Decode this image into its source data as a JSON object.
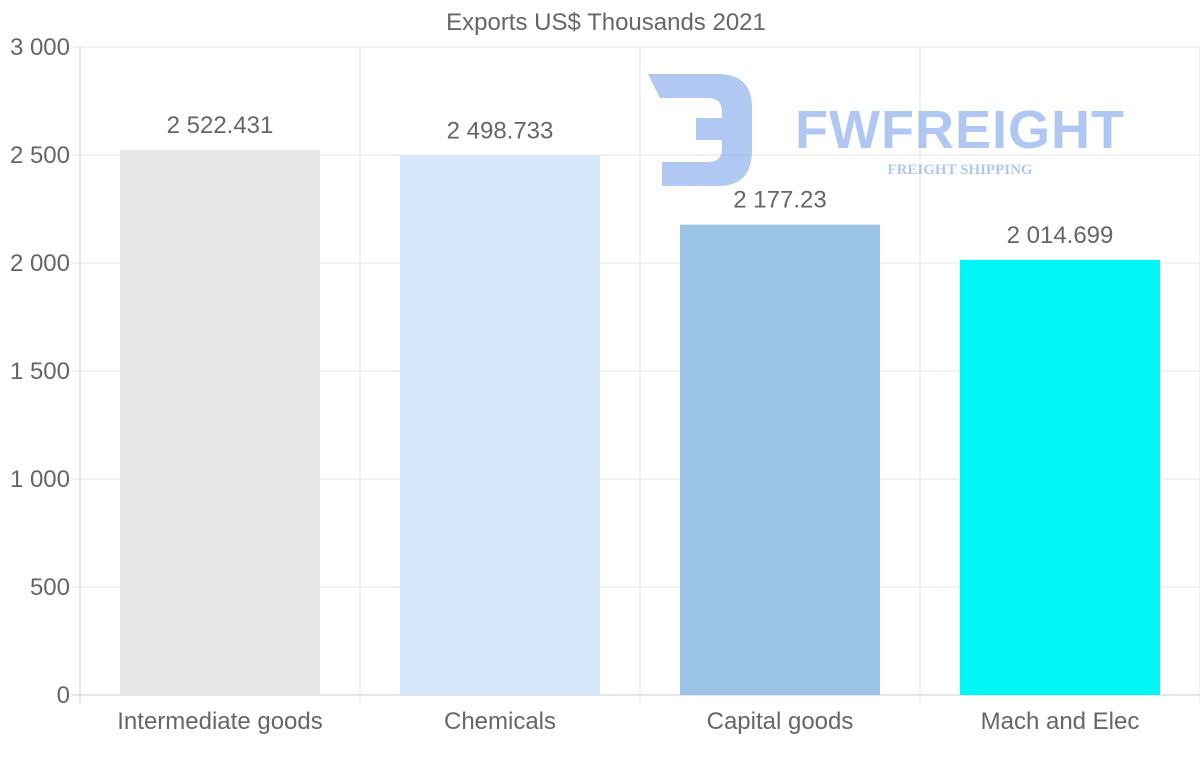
{
  "chart_data": {
    "type": "bar",
    "title": "Exports US$ Thousands 2021",
    "categories": [
      "Intermediate goods",
      "Chemicals",
      "Capital goods",
      "Mach and Elec"
    ],
    "values": [
      2522.431,
      2498.733,
      2177.23,
      2014.699
    ],
    "value_labels": [
      "2 522.431",
      "2 498.733",
      "2 177.23",
      "2 014.699"
    ],
    "bar_colors": [
      "#e6e6e6",
      "#d7e8fa",
      "#9cc4e6",
      "#00f7f7"
    ],
    "ylim": [
      0,
      3000
    ],
    "yticks": [
      0,
      500,
      1000,
      1500,
      2000,
      2500,
      3000
    ],
    "ytick_labels": [
      "0",
      "500",
      "1 000",
      "1 500",
      "2 000",
      "2 500",
      "3 000"
    ],
    "xlabel": "",
    "ylabel": "",
    "grid": true,
    "legend": "none"
  },
  "watermark": {
    "brand": "FWFREIGHT",
    "tagline": "FREIGHT SHIPPING",
    "color": "#6f9be8"
  },
  "colors": {
    "grid": "#e6e6e6",
    "axis": "#cccccc",
    "text": "#666666"
  }
}
